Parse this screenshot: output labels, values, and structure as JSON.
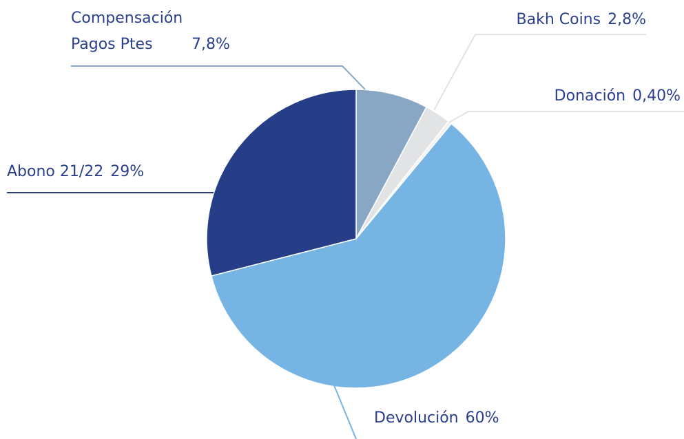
{
  "chart_data": {
    "type": "pie",
    "categories": [
      "Compensación Pagos Ptes",
      "Bakh Coins",
      "Donación",
      "Devolución",
      "Abono 21/22"
    ],
    "values": [
      7.8,
      2.8,
      0.4,
      60,
      29
    ],
    "value_labels": [
      "7,8%",
      "2,8%",
      "0,40%",
      "60%",
      "29%"
    ],
    "colors": [
      "#87a7c4",
      "#e1e3e5",
      "#f2f2f2",
      "#76b5e3",
      "#253e87"
    ]
  }
}
